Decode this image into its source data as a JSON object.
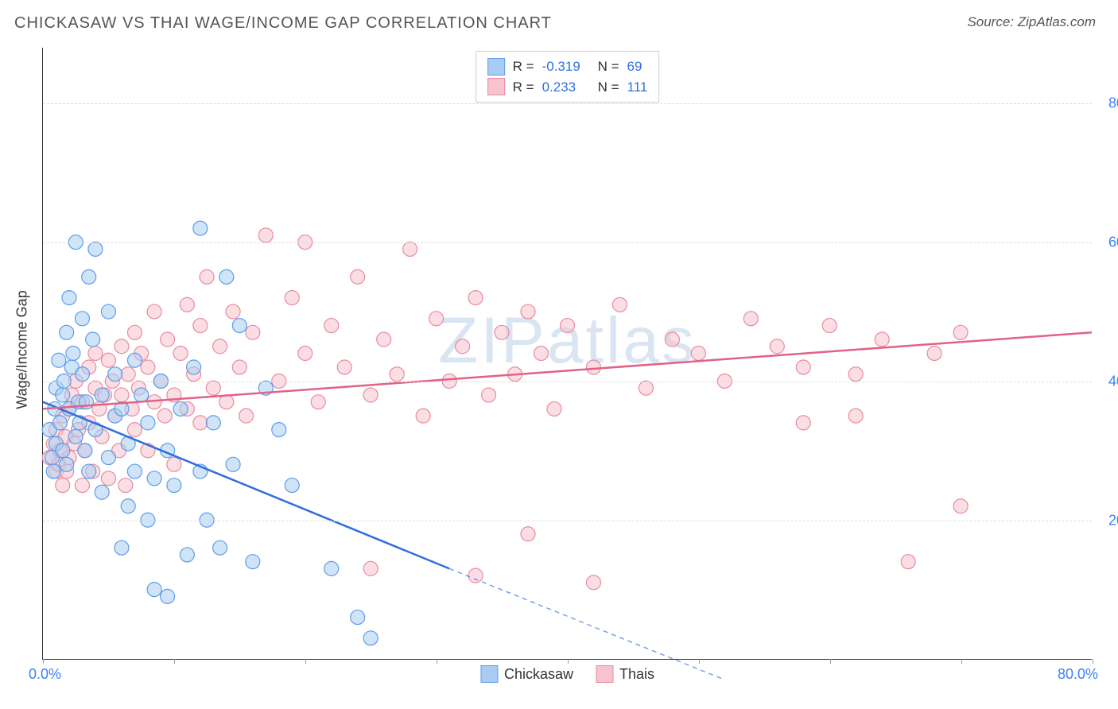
{
  "title": "CHICKASAW VS THAI WAGE/INCOME GAP CORRELATION CHART",
  "source": "Source: ZipAtlas.com",
  "y_axis_label": "Wage/Income Gap",
  "watermark": "ZIPatlas",
  "chart": {
    "type": "scatter",
    "xlim": [
      0,
      80
    ],
    "ylim": [
      0,
      88
    ],
    "y_ticks": [
      20,
      40,
      60,
      80
    ],
    "y_tick_labels": [
      "20.0%",
      "40.0%",
      "60.0%",
      "80.0%"
    ],
    "x_tick_marks": [
      0,
      10,
      20,
      30,
      40,
      50,
      60,
      70,
      80
    ],
    "x_tick_left": "0.0%",
    "x_tick_right": "80.0%",
    "grid_color": "#dcdcdc",
    "background_color": "#ffffff",
    "marker_radius": 9,
    "marker_opacity": 0.55,
    "line_width": 2.5,
    "series": [
      {
        "name": "Chickasaw",
        "color_fill": "#a9cdf2",
        "color_stroke": "#5c9de8",
        "line_color": "#2f6fe0",
        "R": "-0.319",
        "N": "69",
        "trend": {
          "x1": 0,
          "y1": 37,
          "x_solid_end": 31,
          "y_solid_end": 13,
          "x2": 52,
          "y2": -3
        },
        "points": [
          [
            0.5,
            33
          ],
          [
            0.7,
            29
          ],
          [
            0.8,
            27
          ],
          [
            0.9,
            36
          ],
          [
            1,
            31
          ],
          [
            1,
            39
          ],
          [
            1.2,
            43
          ],
          [
            1.3,
            34
          ],
          [
            1.5,
            38
          ],
          [
            1.5,
            30
          ],
          [
            1.6,
            40
          ],
          [
            1.8,
            47
          ],
          [
            1.8,
            28
          ],
          [
            2,
            52
          ],
          [
            2,
            36
          ],
          [
            2.2,
            42
          ],
          [
            2.3,
            44
          ],
          [
            2.5,
            32
          ],
          [
            2.5,
            60
          ],
          [
            2.7,
            37
          ],
          [
            2.8,
            34
          ],
          [
            3,
            49
          ],
          [
            3,
            41
          ],
          [
            3.2,
            30
          ],
          [
            3.3,
            37
          ],
          [
            3.5,
            55
          ],
          [
            3.5,
            27
          ],
          [
            3.8,
            46
          ],
          [
            4,
            59
          ],
          [
            4,
            33
          ],
          [
            4.5,
            38
          ],
          [
            4.5,
            24
          ],
          [
            5,
            50
          ],
          [
            5,
            29
          ],
          [
            5.5,
            35
          ],
          [
            5.5,
            41
          ],
          [
            6,
            16
          ],
          [
            6,
            36
          ],
          [
            6.5,
            31
          ],
          [
            6.5,
            22
          ],
          [
            7,
            43
          ],
          [
            7,
            27
          ],
          [
            7.5,
            38
          ],
          [
            8,
            20
          ],
          [
            8,
            34
          ],
          [
            8.5,
            26
          ],
          [
            8.5,
            10
          ],
          [
            9,
            40
          ],
          [
            9.5,
            30
          ],
          [
            9.5,
            9
          ],
          [
            10,
            25
          ],
          [
            10.5,
            36
          ],
          [
            11,
            15
          ],
          [
            11.5,
            42
          ],
          [
            12,
            62
          ],
          [
            12,
            27
          ],
          [
            12.5,
            20
          ],
          [
            13,
            34
          ],
          [
            13.5,
            16
          ],
          [
            14,
            55
          ],
          [
            14.5,
            28
          ],
          [
            15,
            48
          ],
          [
            16,
            14
          ],
          [
            17,
            39
          ],
          [
            18,
            33
          ],
          [
            19,
            25
          ],
          [
            22,
            13
          ],
          [
            24,
            6
          ],
          [
            25,
            3
          ]
        ]
      },
      {
        "name": "Thais",
        "color_fill": "#f6c3ce",
        "color_stroke": "#e98aa1",
        "line_color": "#e26184",
        "R": "0.233",
        "N": "111",
        "trend": {
          "x1": 0,
          "y1": 36,
          "x_solid_end": 80,
          "y_solid_end": 47,
          "x2": 80,
          "y2": 47
        },
        "points": [
          [
            0.5,
            29
          ],
          [
            0.8,
            31
          ],
          [
            1,
            27
          ],
          [
            1,
            33
          ],
          [
            1.2,
            28
          ],
          [
            1.3,
            30
          ],
          [
            1.5,
            25
          ],
          [
            1.5,
            35
          ],
          [
            1.7,
            32
          ],
          [
            1.8,
            27
          ],
          [
            2,
            29
          ],
          [
            2,
            36
          ],
          [
            2.2,
            38
          ],
          [
            2.4,
            31
          ],
          [
            2.5,
            40
          ],
          [
            2.7,
            33
          ],
          [
            3,
            37
          ],
          [
            3,
            25
          ],
          [
            3.2,
            30
          ],
          [
            3.5,
            42
          ],
          [
            3.5,
            34
          ],
          [
            3.8,
            27
          ],
          [
            4,
            39
          ],
          [
            4,
            44
          ],
          [
            4.3,
            36
          ],
          [
            4.5,
            32
          ],
          [
            4.7,
            38
          ],
          [
            5,
            26
          ],
          [
            5,
            43
          ],
          [
            5.3,
            40
          ],
          [
            5.5,
            35
          ],
          [
            5.8,
            30
          ],
          [
            6,
            45
          ],
          [
            6,
            38
          ],
          [
            6.3,
            25
          ],
          [
            6.5,
            41
          ],
          [
            6.8,
            36
          ],
          [
            7,
            47
          ],
          [
            7,
            33
          ],
          [
            7.3,
            39
          ],
          [
            7.5,
            44
          ],
          [
            8,
            30
          ],
          [
            8,
            42
          ],
          [
            8.5,
            37
          ],
          [
            8.5,
            50
          ],
          [
            9,
            40
          ],
          [
            9.3,
            35
          ],
          [
            9.5,
            46
          ],
          [
            10,
            38
          ],
          [
            10,
            28
          ],
          [
            10.5,
            44
          ],
          [
            11,
            36
          ],
          [
            11,
            51
          ],
          [
            11.5,
            41
          ],
          [
            12,
            34
          ],
          [
            12,
            48
          ],
          [
            12.5,
            55
          ],
          [
            13,
            39
          ],
          [
            13.5,
            45
          ],
          [
            14,
            37
          ],
          [
            14.5,
            50
          ],
          [
            15,
            42
          ],
          [
            15.5,
            35
          ],
          [
            16,
            47
          ],
          [
            17,
            61
          ],
          [
            18,
            40
          ],
          [
            19,
            52
          ],
          [
            20,
            44
          ],
          [
            21,
            37
          ],
          [
            22,
            48
          ],
          [
            23,
            42
          ],
          [
            24,
            55
          ],
          [
            25,
            38
          ],
          [
            26,
            46
          ],
          [
            27,
            41
          ],
          [
            28,
            59
          ],
          [
            29,
            35
          ],
          [
            30,
            49
          ],
          [
            31,
            40
          ],
          [
            32,
            45
          ],
          [
            33,
            52
          ],
          [
            34,
            38
          ],
          [
            35,
            47
          ],
          [
            36,
            41
          ],
          [
            37,
            50
          ],
          [
            38,
            44
          ],
          [
            39,
            36
          ],
          [
            40,
            48
          ],
          [
            42,
            42
          ],
          [
            44,
            51
          ],
          [
            46,
            39
          ],
          [
            48,
            46
          ],
          [
            50,
            44
          ],
          [
            52,
            40
          ],
          [
            54,
            49
          ],
          [
            56,
            45
          ],
          [
            58,
            42
          ],
          [
            60,
            48
          ],
          [
            62,
            41
          ],
          [
            64,
            46
          ],
          [
            66,
            14
          ],
          [
            68,
            44
          ],
          [
            70,
            47
          ],
          [
            33,
            12
          ],
          [
            37,
            18
          ],
          [
            25,
            13
          ],
          [
            42,
            11
          ],
          [
            70,
            22
          ],
          [
            58,
            34
          ],
          [
            62,
            35
          ],
          [
            20,
            60
          ]
        ]
      }
    ]
  },
  "stats_legend_labels": {
    "R": "R =",
    "N": "N ="
  },
  "series_legend": [
    "Chickasaw",
    "Thais"
  ]
}
